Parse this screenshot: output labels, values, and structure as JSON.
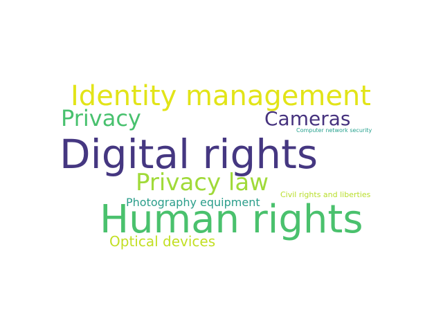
{
  "word_cloud": {
    "words": [
      {
        "text": "Digital rights",
        "color": "#453781"
      },
      {
        "text": "Human rights",
        "color": "#4ac16d"
      },
      {
        "text": "Identity management",
        "color": "#e2e418"
      },
      {
        "text": "Privacy law",
        "color": "#a0da39"
      },
      {
        "text": "Privacy",
        "color": "#48c16e"
      },
      {
        "text": "Cameras",
        "color": "#46327e"
      },
      {
        "text": "Photography equipment",
        "color": "#2a9d8a"
      },
      {
        "text": "Optical devices",
        "color": "#c2df23"
      },
      {
        "text": "Civil rights and liberties",
        "color": "#b8de29"
      },
      {
        "text": "Computer network security",
        "color": "#25a18e"
      }
    ]
  }
}
